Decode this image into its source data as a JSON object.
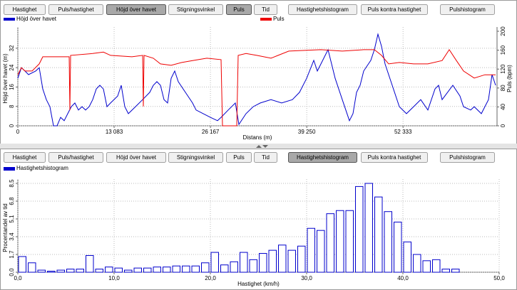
{
  "toolbars": [
    [
      {
        "label": "Hastighet",
        "pressed": false
      },
      {
        "label": "Puls/hastighet",
        "pressed": false
      },
      {
        "label": "Höjd över havet",
        "pressed": true
      },
      {
        "label": "Stigningsvinkel",
        "pressed": false
      },
      {
        "label": "Puls",
        "pressed": true
      },
      {
        "label": "Tid",
        "pressed": false
      },
      {
        "label": "Hastighetshistogram",
        "pressed": false
      },
      {
        "label": "Puls kontra hastighet",
        "pressed": false
      },
      {
        "label": "Pulshistogram",
        "pressed": false
      }
    ],
    [
      {
        "label": "Hastighet",
        "pressed": false
      },
      {
        "label": "Puls/hastighet",
        "pressed": false
      },
      {
        "label": "Höjd över havet",
        "pressed": false
      },
      {
        "label": "Stigningsvinkel",
        "pressed": false
      },
      {
        "label": "Puls",
        "pressed": false
      },
      {
        "label": "Tid",
        "pressed": false
      },
      {
        "label": "Hastighetshistogram",
        "pressed": true
      },
      {
        "label": "Puls kontra hastighet",
        "pressed": false
      },
      {
        "label": "Pulshistogram",
        "pressed": false
      }
    ]
  ],
  "chart_data": [
    {
      "type": "line",
      "x_label": "Distans (m)",
      "y_label": "Höjd över havet (m)",
      "y2_label": "Puls (bpm)",
      "grid": true,
      "xlim": [
        0,
        65100
      ],
      "xticks": [
        0,
        {
          "value": 13083,
          "label": "13 083"
        },
        {
          "value": 26167,
          "label": "26 167"
        },
        {
          "value": 39250,
          "label": "39 250"
        },
        {
          "value": 52333,
          "label": "52 333"
        }
      ],
      "ylim": [
        0,
        39
      ],
      "yticks": [
        0,
        8,
        16,
        24,
        32
      ],
      "y2lim": [
        0,
        200
      ],
      "y2ticks": [
        0,
        40,
        80,
        120,
        160,
        200
      ],
      "series": [
        {
          "name": "Höjd över havet",
          "color": "#0000cc",
          "axis": "y",
          "x": [
            0,
            484,
            969,
            1453,
            2422,
            2906,
            3391,
            3875,
            4359,
            4844,
            5328,
            5813,
            6297,
            6781,
            7266,
            7750,
            8234,
            8719,
            9203,
            9688,
            10172,
            10656,
            11141,
            11625,
            12109,
            12594,
            13563,
            14047,
            14531,
            15016,
            15984,
            16953,
            17922,
            18406,
            18891,
            19375,
            19859,
            20344,
            20828,
            21313,
            21797,
            22766,
            23734,
            24219,
            25188,
            26156,
            27125,
            27609,
            28578,
            29547,
            30031,
            31000,
            31969,
            32938,
            34391,
            35844,
            37297,
            38266,
            39234,
            40203,
            40688,
            41172,
            42141,
            42625,
            43109,
            44078,
            45047,
            45531,
            46016,
            46500,
            46984,
            47953,
            48438,
            48922,
            49406,
            49891,
            50859,
            51828,
            52797,
            53766,
            54734,
            55703,
            56672,
            57156,
            57641,
            59094,
            60063,
            60547,
            61516,
            62000,
            62969,
            63938,
            64422,
            64906
          ],
          "values": [
            19.6,
            24.0,
            22.6,
            21.1,
            22.6,
            24.0,
            15.2,
            10.8,
            7.9,
            0,
            0,
            3.5,
            2.1,
            5.0,
            7.9,
            9.4,
            6.5,
            7.9,
            6.5,
            7.9,
            10.8,
            15.2,
            16.7,
            15.2,
            7.9,
            9.4,
            12.3,
            16.7,
            7.9,
            5.0,
            7.9,
            10.8,
            13.8,
            16.7,
            18.2,
            16.7,
            10.8,
            9.4,
            19.6,
            22.6,
            18.2,
            13.8,
            9.4,
            6.5,
            5.0,
            3.5,
            2.1,
            3.5,
            6.5,
            9.4,
            0.6,
            5.0,
            7.9,
            9.4,
            10.8,
            9.4,
            10.8,
            13.8,
            19.6,
            27.0,
            22.6,
            25.5,
            31.4,
            25.5,
            19.6,
            10.8,
            2.1,
            5.0,
            13.8,
            16.7,
            22.6,
            27.0,
            31.4,
            37.8,
            32.8,
            25.5,
            16.7,
            7.9,
            5.0,
            7.9,
            10.8,
            6.5,
            15.2,
            16.7,
            10.8,
            16.7,
            12.3,
            7.9,
            6.5,
            7.9,
            5.0,
            10.8,
            21.1,
            16.7
          ]
        },
        {
          "name": "Puls",
          "color": "#ee0000",
          "axis": "y2",
          "x": [
            0,
            484,
            969,
            1938,
            2906,
            3391,
            6975,
            7072,
            7169,
            10172,
            11625,
            12594,
            15500,
            16953,
            17050,
            17147,
            18406,
            19375,
            20828,
            22281,
            23734,
            25672,
            27609,
            27803,
            29741,
            29934,
            31000,
            32453,
            34391,
            35359,
            36813,
            41172,
            44078,
            46984,
            48438,
            49406,
            50375,
            51828,
            53766,
            55703,
            57641,
            58609,
            59578,
            60547,
            62000,
            63453,
            64906
          ],
          "values": [
            108,
            123,
            116,
            116,
            131,
            146,
            146,
            33,
            149,
            153,
            156,
            149,
            146,
            149,
            41,
            149,
            143,
            131,
            128,
            134,
            138,
            143,
            140,
            0,
            0,
            149,
            153,
            149,
            143,
            149,
            158,
            161,
            158,
            161,
            161,
            149,
            131,
            134,
            131,
            131,
            138,
            161,
            138,
            116,
            101,
            108,
            108
          ]
        }
      ]
    },
    {
      "type": "histogram",
      "name": "Hastighetshistogram",
      "color": "#0000cc",
      "x_label": "Hastighet (km/h)",
      "y_label": "Procentandel av tid",
      "grid": true,
      "xlim": [
        0,
        50
      ],
      "xticks": [
        {
          "value": 0,
          "label": "0,0"
        },
        {
          "value": 10,
          "label": "10,0"
        },
        {
          "value": 20,
          "label": "20,0"
        },
        {
          "value": 30,
          "label": "30,0"
        },
        {
          "value": 40,
          "label": "40,0"
        },
        {
          "value": 50,
          "label": "50,0"
        }
      ],
      "ylim": [
        0,
        8.5
      ],
      "yticks": [
        {
          "value": 0,
          "label": "0,0"
        },
        {
          "value": 1.7,
          "label": "1,7"
        },
        {
          "value": 3.4,
          "label": "3,4"
        },
        {
          "value": 5.1,
          "label": "5,1"
        },
        {
          "value": 6.8,
          "label": "6,8"
        },
        {
          "value": 8.5,
          "label": "8,5"
        }
      ],
      "bins": [
        0,
        1,
        2,
        3,
        4,
        5,
        6,
        7,
        8,
        9,
        10,
        11,
        12,
        13,
        14,
        15,
        16,
        17,
        18,
        19,
        20,
        21,
        22,
        23,
        24,
        25,
        26,
        27,
        28,
        29,
        30,
        31,
        32,
        33,
        34,
        35,
        36,
        37,
        38,
        39,
        40,
        41,
        42,
        43,
        44,
        45,
        46
      ],
      "counts": [
        1.5,
        0.9,
        0.2,
        0.1,
        0.2,
        0.3,
        0.3,
        1.6,
        0.3,
        0.5,
        0.4,
        0.2,
        0.4,
        0.4,
        0.5,
        0.5,
        0.6,
        0.6,
        0.6,
        0.9,
        1.9,
        0.7,
        1.0,
        1.9,
        1.2,
        1.8,
        2.1,
        2.6,
        2.1,
        2.5,
        4.2,
        4.0,
        5.6,
        5.9,
        5.9,
        8.2,
        8.5,
        7.2,
        5.8,
        4.8,
        2.9,
        1.7,
        1.1,
        1.2,
        0.3,
        0.3
      ]
    }
  ]
}
